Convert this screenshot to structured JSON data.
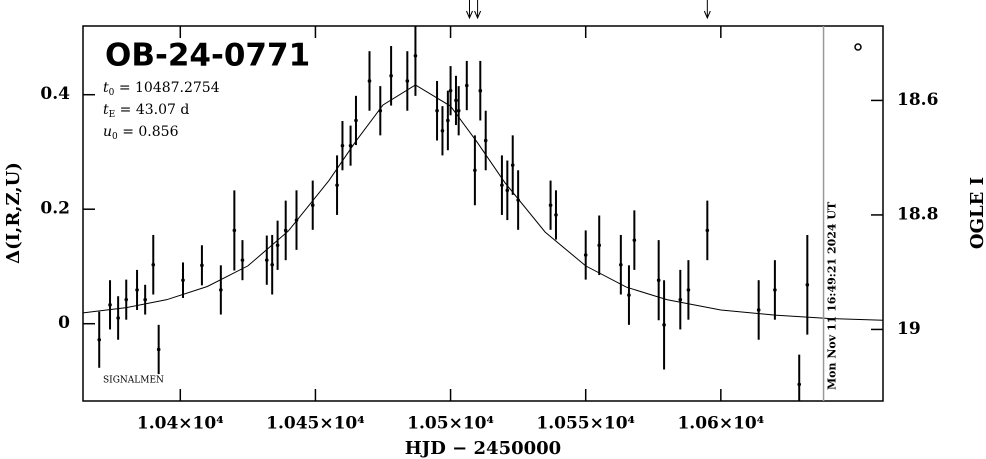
{
  "chart_data": {
    "type": "scatter",
    "title": "OB-24-0771",
    "params": [
      {
        "symbol": "t",
        "sub": "0",
        "text": " = 10487.2754"
      },
      {
        "symbol": "t",
        "sub": "E",
        "text": " = 43.07 d"
      },
      {
        "symbol": "u",
        "sub": "0",
        "text": " = 0.856"
      }
    ],
    "credit": "SIGNALMEN",
    "x_label": "HJD − 2450000",
    "y_label": "Δ(I,R,Z,U)",
    "y2_label": "OGLE I",
    "timestamp": "Mon Nov 11 16:49:21 2024 UT",
    "now_x": 10638,
    "arrows_x": [
      10507,
      10510,
      10595
    ],
    "xlim": [
      10364,
      10660
    ],
    "xticks": [
      {
        "value": 10400,
        "label": "1.04×10⁴"
      },
      {
        "value": 10450,
        "label": "1.045×10⁴"
      },
      {
        "value": 10500,
        "label": "1.05×10⁴"
      },
      {
        "value": 10550,
        "label": "1.055×10⁴"
      },
      {
        "value": 10600,
        "label": "1.06×10⁴"
      }
    ],
    "ylim": [
      -0.135,
      0.52
    ],
    "yticks": [
      0,
      0.2,
      0.4
    ],
    "y2lim": [
      18.47,
      19.125
    ],
    "y2_inverted": true,
    "y2ticks": [
      18.6,
      18.8,
      19
    ],
    "series": [
      {
        "color": "#000000",
        "x": [
          10370,
          10374,
          10377,
          10380,
          10384,
          10387,
          10390,
          10392,
          10401,
          10408,
          10415,
          10420,
          10423,
          10432,
          10434,
          10436,
          10439,
          10443,
          10449,
          10458,
          10460,
          10463,
          10465,
          10470,
          10474,
          10478,
          10484,
          10487,
          10495,
          10497,
          10499,
          10500,
          10502,
          10503,
          10506,
          10509,
          10511,
          10513,
          10519,
          10521,
          10523,
          10525,
          10537,
          10539,
          10550,
          10555,
          10563,
          10566,
          10568,
          10577,
          10579,
          10585,
          10588,
          10595,
          10614,
          10620,
          10629,
          10632
        ],
        "values": [
          -0.028,
          0.033,
          0.01,
          0.042,
          0.059,
          0.042,
          0.103,
          -0.045,
          0.076,
          0.102,
          0.059,
          0.163,
          0.111,
          0.111,
          0.103,
          0.137,
          0.163,
          0.181,
          0.207,
          0.242,
          0.311,
          0.311,
          0.355,
          0.424,
          0.372,
          0.433,
          0.424,
          0.468,
          0.372,
          0.337,
          0.355,
          0.407,
          0.39,
          0.372,
          0.416,
          0.268,
          0.407,
          0.32,
          0.242,
          0.233,
          0.277,
          0.216,
          0.207,
          0.19,
          0.12,
          0.137,
          0.103,
          0.05,
          0.146,
          0.076,
          -0.002,
          0.042,
          0.059,
          0.163,
          0.024,
          0.059,
          -0.106,
          0.068
        ],
        "errors": [
          0.049,
          0.043,
          0.038,
          0.035,
          0.035,
          0.026,
          0.052,
          0.043,
          0.031,
          0.035,
          0.043,
          0.07,
          0.035,
          0.043,
          0.052,
          0.043,
          0.052,
          0.052,
          0.043,
          0.052,
          0.043,
          0.035,
          0.043,
          0.052,
          0.043,
          0.052,
          0.052,
          0.07,
          0.052,
          0.043,
          0.052,
          0.043,
          0.043,
          0.043,
          0.043,
          0.061,
          0.052,
          0.052,
          0.052,
          0.052,
          0.052,
          0.052,
          0.043,
          0.043,
          0.043,
          0.052,
          0.052,
          0.052,
          0.052,
          0.07,
          0.078,
          0.052,
          0.052,
          0.052,
          0.052,
          0.052,
          0.052,
          0.087
        ]
      }
    ],
    "model": {
      "color": "#000000",
      "x": [
        10364,
        10380,
        10395,
        10410,
        10425,
        10440,
        10455,
        10465,
        10475,
        10487,
        10500,
        10510,
        10520,
        10535,
        10550,
        10565,
        10580,
        10600,
        10620,
        10640,
        10660
      ],
      "values": [
        0.019,
        0.028,
        0.042,
        0.065,
        0.101,
        0.162,
        0.25,
        0.319,
        0.382,
        0.417,
        0.38,
        0.316,
        0.247,
        0.16,
        0.101,
        0.064,
        0.042,
        0.024,
        0.015,
        0.009,
        0.006
      ]
    }
  }
}
